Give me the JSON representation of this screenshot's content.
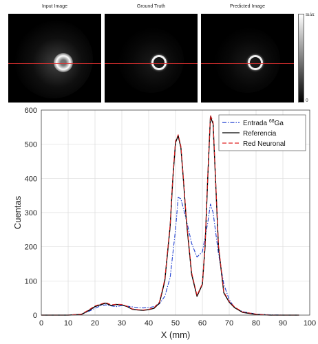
{
  "panels": {
    "titles": [
      "Input Image",
      "Ground Truth",
      "Predicted Image"
    ],
    "colorbar": {
      "max_label": "máx",
      "min_label": "0"
    }
  },
  "colors": {
    "input": "#1f3fd0",
    "reference": "#000000",
    "neural": "#e02020",
    "profile_line": "#e03030"
  },
  "chart_data": {
    "type": "line",
    "xlabel": "X (mm)",
    "ylabel": "Cuentas",
    "xlim": [
      0,
      100
    ],
    "ylim": [
      0,
      600
    ],
    "xticks": [
      0,
      10,
      20,
      30,
      40,
      50,
      60,
      70,
      80,
      90,
      100
    ],
    "yticks": [
      0,
      100,
      200,
      300,
      400,
      500,
      600
    ],
    "grid": true,
    "legend_position": "top-right",
    "legend": [
      {
        "label": "Entrada ",
        "sup": "68",
        "suffix": "Ga",
        "style": "dash-dot",
        "color": "#1f3fd0"
      },
      {
        "label": "Referencia",
        "sup": "",
        "suffix": "",
        "style": "solid",
        "color": "#000000"
      },
      {
        "label": "Red Neuronal",
        "sup": "",
        "suffix": "",
        "style": "dashed",
        "color": "#e02020"
      }
    ],
    "series": [
      {
        "name": "Entrada 68Ga",
        "x": [
          0,
          10,
          15,
          18,
          20,
          22,
          24,
          26,
          28,
          30,
          32,
          34,
          36,
          38,
          40,
          42,
          44,
          46,
          48,
          50,
          51,
          52,
          54,
          56,
          58,
          60,
          62,
          63,
          64,
          66,
          68,
          70,
          72,
          75,
          80,
          85,
          90,
          96
        ],
        "y": [
          0,
          0,
          3,
          12,
          20,
          27,
          30,
          27,
          25,
          28,
          26,
          24,
          22,
          21,
          22,
          25,
          33,
          55,
          110,
          250,
          345,
          340,
          280,
          210,
          170,
          185,
          270,
          325,
          300,
          180,
          90,
          45,
          22,
          10,
          3,
          1,
          0,
          0
        ]
      },
      {
        "name": "Referencia",
        "x": [
          0,
          10,
          15,
          18,
          20,
          22,
          24,
          26,
          28,
          30,
          32,
          34,
          36,
          38,
          40,
          42,
          44,
          46,
          48,
          49,
          50,
          51,
          52,
          53,
          54,
          56,
          58,
          60,
          61,
          62,
          63,
          64,
          65,
          66,
          68,
          70,
          72,
          75,
          80,
          85,
          90,
          96
        ],
        "y": [
          0,
          0,
          2,
          15,
          25,
          30,
          35,
          28,
          31,
          30,
          25,
          17,
          15,
          14,
          16,
          20,
          35,
          100,
          260,
          400,
          505,
          525,
          490,
          390,
          280,
          120,
          55,
          90,
          200,
          400,
          580,
          560,
          380,
          200,
          65,
          38,
          22,
          8,
          2,
          0,
          0,
          0
        ]
      },
      {
        "name": "Red Neuronal",
        "x": [
          0,
          10,
          15,
          18,
          20,
          22,
          24,
          26,
          28,
          30,
          32,
          34,
          36,
          38,
          40,
          42,
          44,
          46,
          48,
          49,
          50,
          51,
          52,
          53,
          54,
          56,
          58,
          60,
          61,
          62,
          63,
          64,
          65,
          66,
          68,
          70,
          72,
          75,
          80,
          85,
          90,
          96
        ],
        "y": [
          0,
          0,
          3,
          17,
          27,
          32,
          37,
          30,
          32,
          31,
          26,
          18,
          16,
          15,
          17,
          22,
          38,
          105,
          265,
          405,
          510,
          528,
          495,
          395,
          285,
          125,
          58,
          92,
          205,
          405,
          585,
          565,
          385,
          205,
          68,
          40,
          24,
          9,
          3,
          0,
          0,
          0
        ]
      }
    ]
  }
}
